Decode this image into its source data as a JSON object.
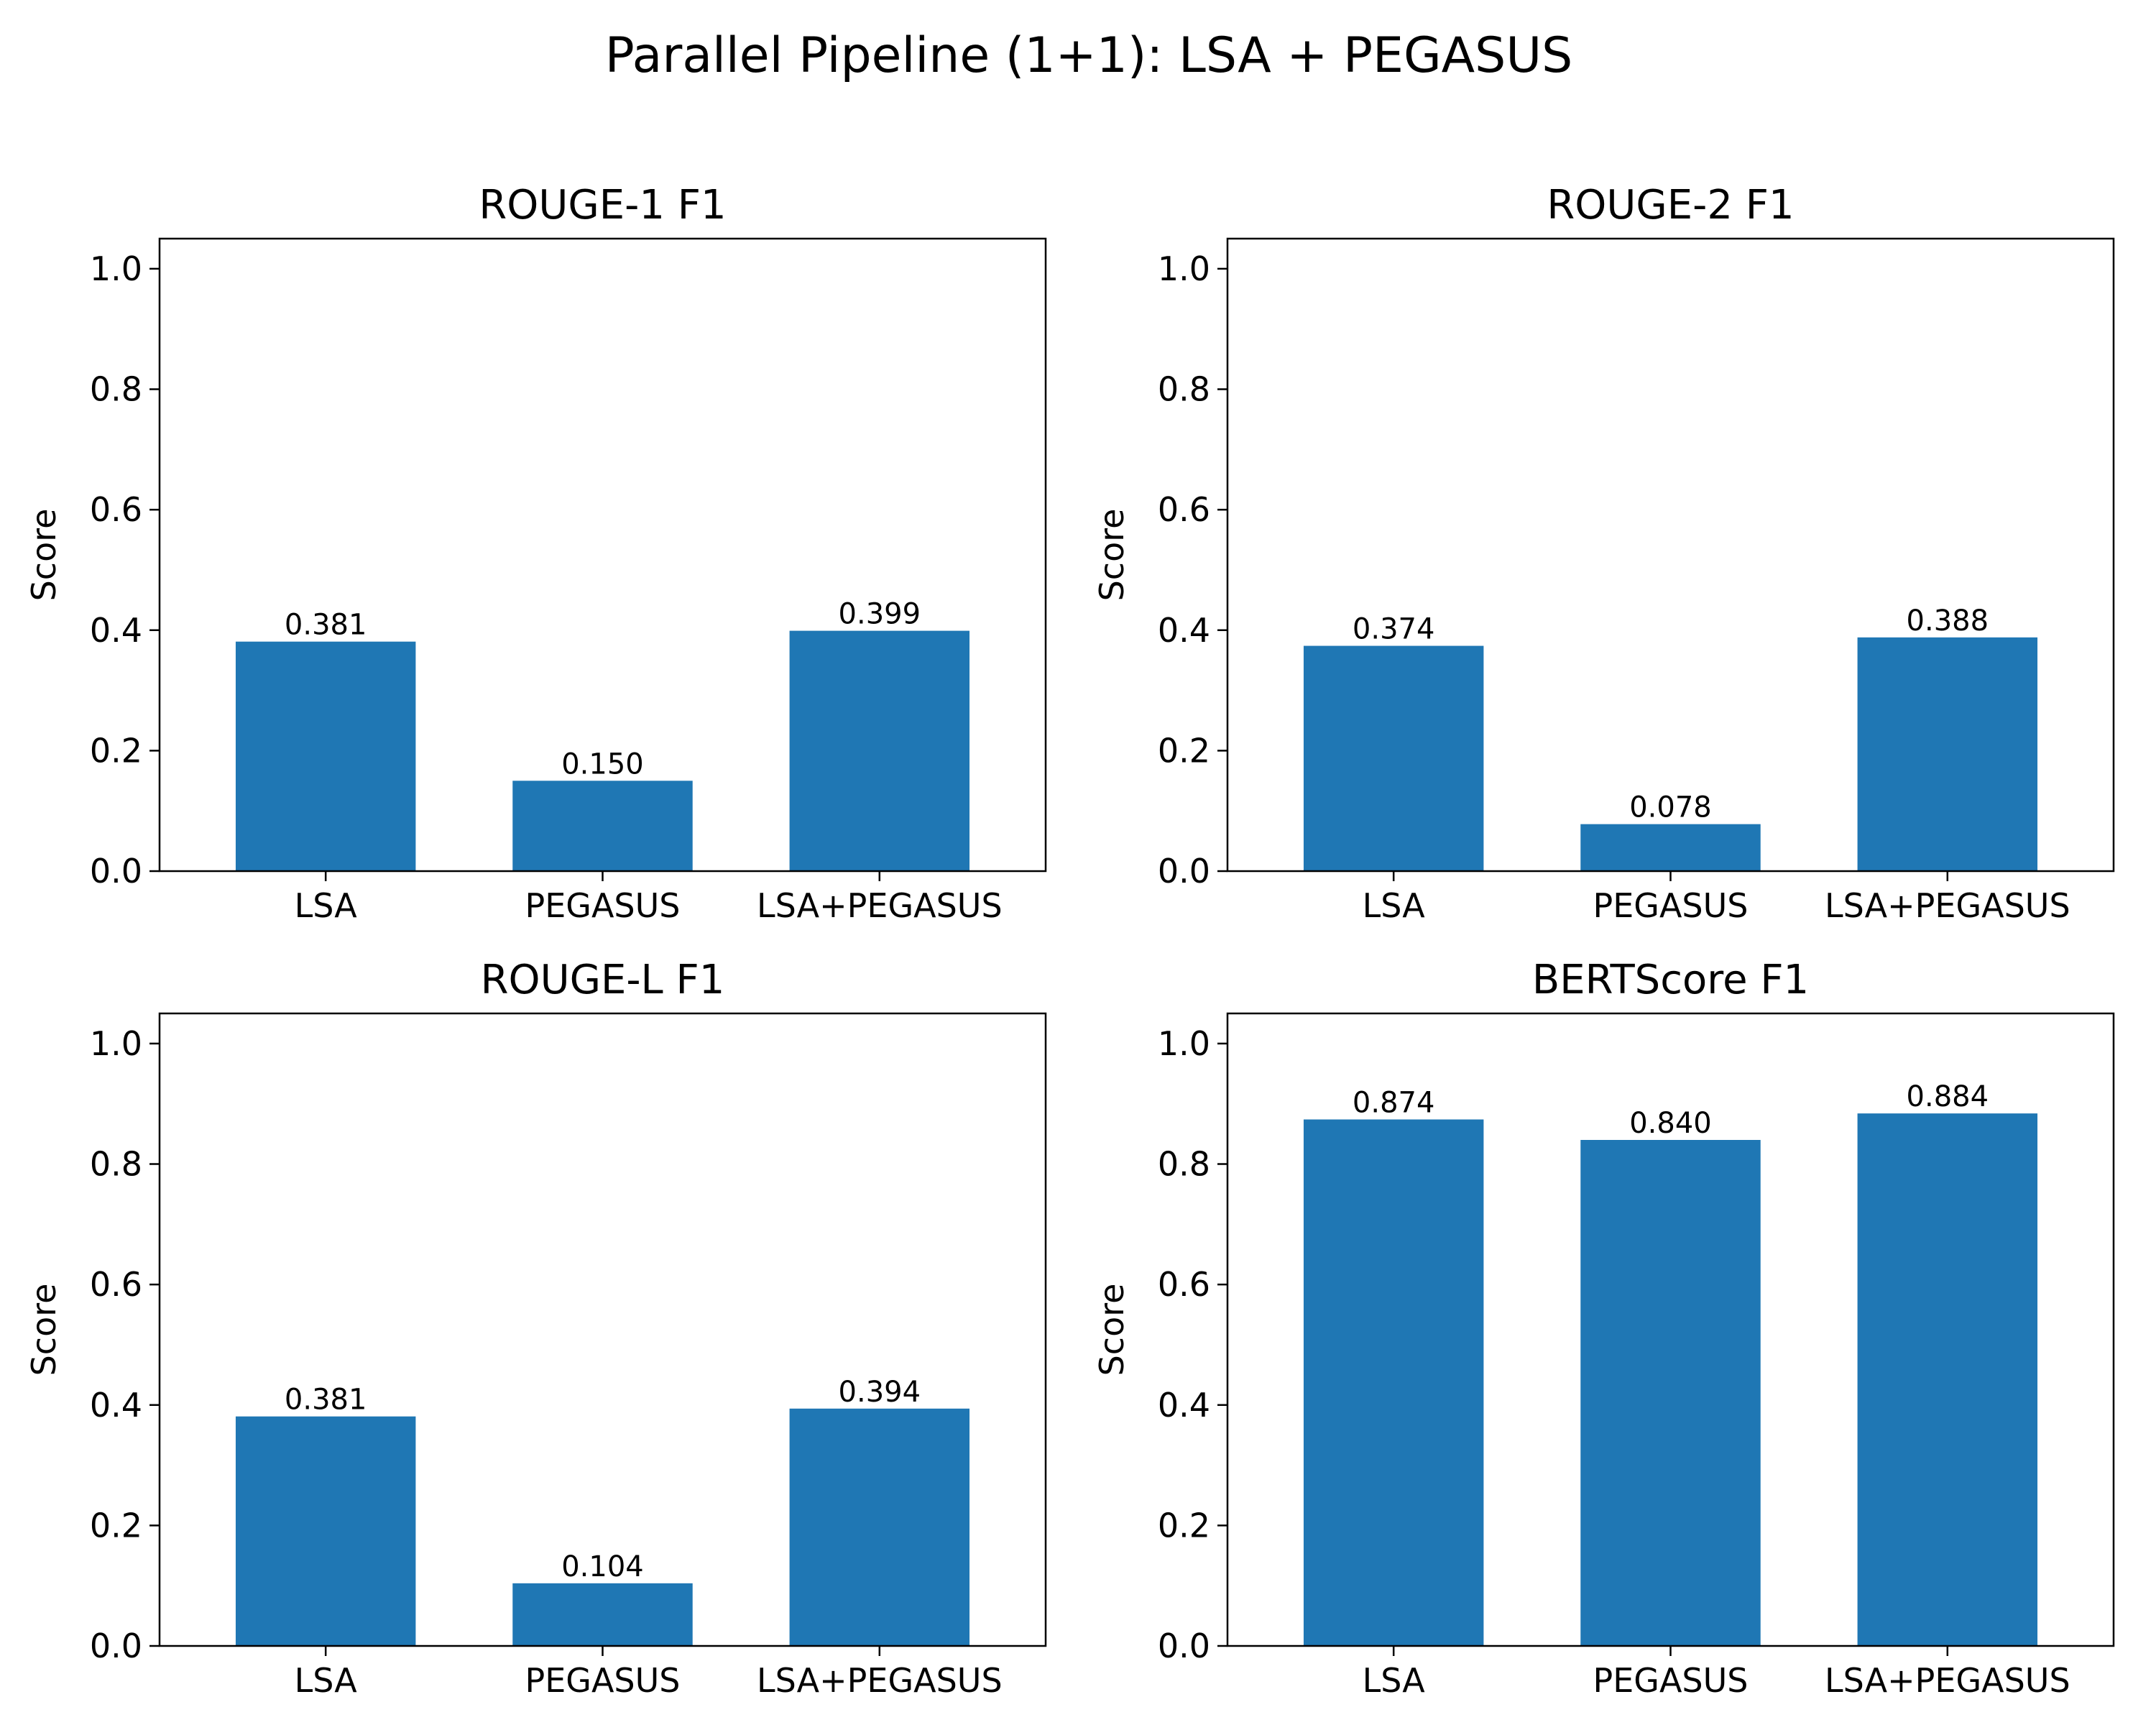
{
  "figure": {
    "suptitle": "Parallel Pipeline (1+1): LSA + PEGASUS",
    "bar_color": "#1f77b4"
  },
  "chart_data": [
    {
      "type": "bar",
      "title": "ROUGE-1 F1",
      "categories": [
        "LSA",
        "PEGASUS",
        "LSA+PEGASUS"
      ],
      "values": [
        0.381,
        0.15,
        0.399
      ],
      "value_labels": [
        "0.381",
        "0.150",
        "0.399"
      ],
      "xlabel": "",
      "ylabel": "Score",
      "ylim": [
        0,
        1.05
      ],
      "yticks": [
        0.0,
        0.2,
        0.4,
        0.6,
        0.8,
        1.0
      ],
      "ytick_labels": [
        "0.0",
        "0.2",
        "0.4",
        "0.6",
        "0.8",
        "1.0"
      ],
      "grid": false
    },
    {
      "type": "bar",
      "title": "ROUGE-2 F1",
      "categories": [
        "LSA",
        "PEGASUS",
        "LSA+PEGASUS"
      ],
      "values": [
        0.374,
        0.078,
        0.388
      ],
      "value_labels": [
        "0.374",
        "0.078",
        "0.388"
      ],
      "xlabel": "",
      "ylabel": "Score",
      "ylim": [
        0,
        1.05
      ],
      "yticks": [
        0.0,
        0.2,
        0.4,
        0.6,
        0.8,
        1.0
      ],
      "ytick_labels": [
        "0.0",
        "0.2",
        "0.4",
        "0.6",
        "0.8",
        "1.0"
      ],
      "grid": false
    },
    {
      "type": "bar",
      "title": "ROUGE-L F1",
      "categories": [
        "LSA",
        "PEGASUS",
        "LSA+PEGASUS"
      ],
      "values": [
        0.381,
        0.104,
        0.394
      ],
      "value_labels": [
        "0.381",
        "0.104",
        "0.394"
      ],
      "xlabel": "",
      "ylabel": "Score",
      "ylim": [
        0,
        1.05
      ],
      "yticks": [
        0.0,
        0.2,
        0.4,
        0.6,
        0.8,
        1.0
      ],
      "ytick_labels": [
        "0.0",
        "0.2",
        "0.4",
        "0.6",
        "0.8",
        "1.0"
      ],
      "grid": false
    },
    {
      "type": "bar",
      "title": "BERTScore F1",
      "categories": [
        "LSA",
        "PEGASUS",
        "LSA+PEGASUS"
      ],
      "values": [
        0.874,
        0.84,
        0.884
      ],
      "value_labels": [
        "0.874",
        "0.840",
        "0.884"
      ],
      "xlabel": "",
      "ylabel": "Score",
      "ylim": [
        0,
        1.05
      ],
      "yticks": [
        0.0,
        0.2,
        0.4,
        0.6,
        0.8,
        1.0
      ],
      "ytick_labels": [
        "0.0",
        "0.2",
        "0.4",
        "0.6",
        "0.8",
        "1.0"
      ],
      "grid": false
    }
  ]
}
